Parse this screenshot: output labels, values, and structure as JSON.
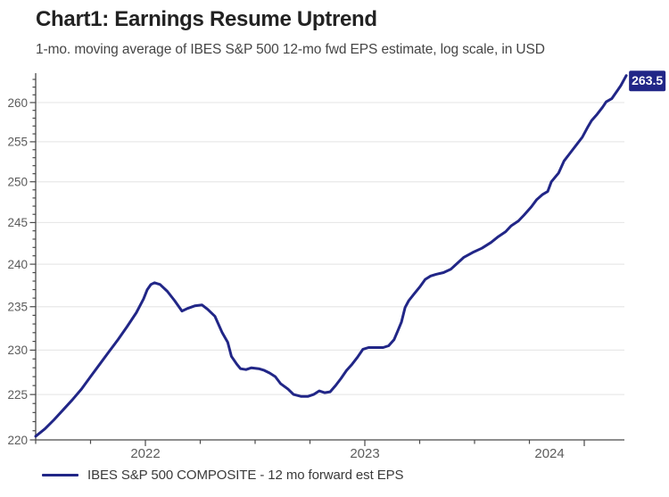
{
  "header": {
    "title": "Chart1: Earnings Resume Uptrend",
    "subtitle": "1-mo. moving average of IBES S&P 500 12-mo fwd EPS estimate, log scale, in USD"
  },
  "legend": {
    "label": "IBES S&P 500 COMPOSITE - 12 mo forward est EPS"
  },
  "colors": {
    "series": "#212687",
    "grid": "#e8e8e8",
    "axis": "#4a4a4a",
    "tick_label": "#5c5c5c",
    "end_label_bg": "#212687",
    "end_label_fg": "#ffffff"
  },
  "chart_data": {
    "type": "line",
    "title": "Chart1: Earnings Resume Uptrend",
    "subtitle": "1-mo. moving average of IBES S&P 500 12-mo fwd EPS estimate, log scale, in USD",
    "x_unit": "months since Jan 2022",
    "x_axis": {
      "range_months": [
        0,
        32.2
      ],
      "tick_interval_months": 3,
      "midyear_tick_months": [
        6,
        18,
        30
      ],
      "year_labels": [
        {
          "label": "2022",
          "span_months": [
            0,
            12
          ]
        },
        {
          "label": "2023",
          "span_months": [
            12,
            24
          ]
        },
        {
          "label": "2024",
          "span_months": [
            24,
            32.2
          ]
        }
      ]
    },
    "y_axis": {
      "scale": "log",
      "range": [
        220,
        263.8
      ],
      "major_ticks": [
        220,
        225,
        230,
        235,
        240,
        245,
        250,
        255,
        260
      ],
      "minor_tick_step": 1,
      "gridlines": [
        225,
        230,
        235,
        240,
        245,
        250,
        255,
        260
      ]
    },
    "end_label": {
      "text": "263.5"
    },
    "series": [
      {
        "name": "IBES S&P 500 COMPOSITE - 12 mo forward est EPS",
        "points": [
          [
            0,
            220.4
          ],
          [
            0.5,
            221.2
          ],
          [
            1,
            222.2
          ],
          [
            1.5,
            223.3
          ],
          [
            2,
            224.4
          ],
          [
            2.5,
            225.6
          ],
          [
            3,
            227.0
          ],
          [
            3.5,
            228.4
          ],
          [
            4,
            229.8
          ],
          [
            4.5,
            231.2
          ],
          [
            5,
            232.7
          ],
          [
            5.5,
            234.3
          ],
          [
            5.9,
            235.9
          ],
          [
            6.1,
            237.0
          ],
          [
            6.3,
            237.6
          ],
          [
            6.5,
            237.8
          ],
          [
            6.8,
            237.6
          ],
          [
            7.2,
            236.8
          ],
          [
            7.6,
            235.7
          ],
          [
            8,
            234.5
          ],
          [
            8.3,
            234.8
          ],
          [
            8.7,
            235.1
          ],
          [
            9.1,
            235.2
          ],
          [
            9.4,
            234.7
          ],
          [
            9.8,
            233.9
          ],
          [
            10.2,
            232.0
          ],
          [
            10.5,
            230.9
          ],
          [
            10.7,
            229.3
          ],
          [
            11,
            228.4
          ],
          [
            11.2,
            227.9
          ],
          [
            11.5,
            227.8
          ],
          [
            11.8,
            228.0
          ],
          [
            12.2,
            227.9
          ],
          [
            12.5,
            227.7
          ],
          [
            12.8,
            227.4
          ],
          [
            13.1,
            227.0
          ],
          [
            13.4,
            226.2
          ],
          [
            13.8,
            225.6
          ],
          [
            14.1,
            225.0
          ],
          [
            14.5,
            224.8
          ],
          [
            14.9,
            224.8
          ],
          [
            15.2,
            225.0
          ],
          [
            15.5,
            225.4
          ],
          [
            15.8,
            225.2
          ],
          [
            16.1,
            225.3
          ],
          [
            16.4,
            226.0
          ],
          [
            16.7,
            226.8
          ],
          [
            17,
            227.7
          ],
          [
            17.3,
            228.4
          ],
          [
            17.6,
            229.2
          ],
          [
            17.9,
            230.1
          ],
          [
            18.2,
            230.3
          ],
          [
            18.6,
            230.3
          ],
          [
            19,
            230.3
          ],
          [
            19.3,
            230.5
          ],
          [
            19.6,
            231.2
          ],
          [
            19.8,
            232.2
          ],
          [
            20,
            233.2
          ],
          [
            20.2,
            234.9
          ],
          [
            20.4,
            235.7
          ],
          [
            20.7,
            236.5
          ],
          [
            21,
            237.3
          ],
          [
            21.3,
            238.2
          ],
          [
            21.6,
            238.6
          ],
          [
            21.9,
            238.8
          ],
          [
            22.3,
            239.0
          ],
          [
            22.7,
            239.4
          ],
          [
            23,
            240.0
          ],
          [
            23.4,
            240.8
          ],
          [
            23.9,
            241.4
          ],
          [
            24.4,
            241.9
          ],
          [
            24.9,
            242.6
          ],
          [
            25.3,
            243.3
          ],
          [
            25.7,
            243.9
          ],
          [
            26,
            244.6
          ],
          [
            26.4,
            245.2
          ],
          [
            26.7,
            245.9
          ],
          [
            27.1,
            246.9
          ],
          [
            27.4,
            247.8
          ],
          [
            27.7,
            248.4
          ],
          [
            28,
            248.8
          ],
          [
            28.2,
            250.0
          ],
          [
            28.6,
            251.1
          ],
          [
            28.9,
            252.6
          ],
          [
            29.3,
            253.8
          ],
          [
            29.6,
            254.7
          ],
          [
            29.9,
            255.6
          ],
          [
            30.2,
            256.9
          ],
          [
            30.4,
            257.7
          ],
          [
            30.7,
            258.5
          ],
          [
            31,
            259.4
          ],
          [
            31.2,
            260.1
          ],
          [
            31.5,
            260.5
          ],
          [
            31.8,
            261.5
          ],
          [
            32,
            262.2
          ],
          [
            32.3,
            263.5
          ]
        ]
      }
    ]
  }
}
